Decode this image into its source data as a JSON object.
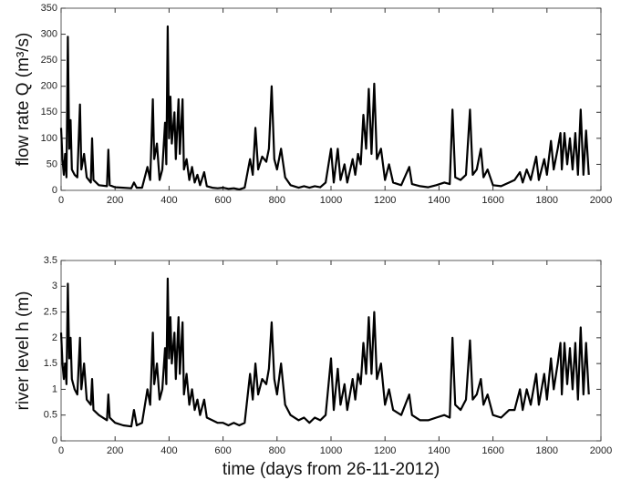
{
  "chart_data": [
    {
      "type": "line",
      "ylabel": "flow rate Q (m³/s)",
      "color": "#000000",
      "x": [
        0,
        5,
        10,
        15,
        20,
        25,
        30,
        35,
        40,
        50,
        60,
        70,
        75,
        85,
        95,
        110,
        115,
        120,
        140,
        170,
        175,
        180,
        200,
        230,
        260,
        270,
        280,
        300,
        320,
        330,
        340,
        345,
        355,
        365,
        375,
        385,
        390,
        395,
        400,
        405,
        410,
        420,
        425,
        435,
        440,
        450,
        455,
        465,
        475,
        485,
        495,
        505,
        515,
        530,
        540,
        560,
        580,
        600,
        620,
        640,
        660,
        680,
        700,
        710,
        720,
        730,
        745,
        760,
        770,
        780,
        790,
        800,
        815,
        830,
        850,
        880,
        900,
        920,
        940,
        960,
        980,
        1000,
        1010,
        1025,
        1035,
        1050,
        1060,
        1080,
        1090,
        1100,
        1110,
        1120,
        1130,
        1140,
        1150,
        1160,
        1170,
        1185,
        1200,
        1215,
        1230,
        1260,
        1290,
        1300,
        1330,
        1360,
        1390,
        1420,
        1440,
        1450,
        1460,
        1480,
        1500,
        1515,
        1525,
        1540,
        1555,
        1565,
        1580,
        1600,
        1630,
        1660,
        1680,
        1700,
        1710,
        1725,
        1740,
        1760,
        1770,
        1790,
        1800,
        1815,
        1825,
        1840,
        1850,
        1855,
        1865,
        1875,
        1885,
        1895,
        1905,
        1915,
        1925,
        1935,
        1945,
        1955
      ],
      "values": [
        120,
        60,
        30,
        70,
        25,
        295,
        80,
        135,
        40,
        30,
        25,
        165,
        40,
        70,
        25,
        15,
        100,
        20,
        10,
        8,
        78,
        10,
        6,
        5,
        4,
        15,
        5,
        5,
        45,
        20,
        175,
        60,
        90,
        20,
        40,
        130,
        50,
        315,
        100,
        180,
        90,
        150,
        60,
        175,
        70,
        175,
        40,
        60,
        20,
        45,
        15,
        30,
        10,
        35,
        8,
        5,
        4,
        5,
        3,
        4,
        2,
        5,
        60,
        30,
        120,
        40,
        65,
        55,
        80,
        200,
        60,
        40,
        80,
        25,
        10,
        5,
        8,
        5,
        8,
        6,
        15,
        80,
        15,
        80,
        20,
        50,
        15,
        60,
        30,
        70,
        50,
        145,
        80,
        195,
        70,
        205,
        60,
        80,
        20,
        50,
        15,
        10,
        45,
        12,
        8,
        6,
        10,
        15,
        12,
        155,
        25,
        20,
        30,
        155,
        30,
        40,
        80,
        25,
        40,
        10,
        8,
        15,
        20,
        35,
        15,
        40,
        20,
        65,
        20,
        60,
        30,
        95,
        40,
        80,
        110,
        40,
        110,
        50,
        100,
        40,
        110,
        30,
        155,
        30,
        115,
        30
      ],
      "xlim": [
        0,
        2000
      ],
      "xticks": [
        0,
        200,
        400,
        600,
        800,
        1000,
        1200,
        1400,
        1600,
        1800,
        2000
      ],
      "ylim": [
        0,
        350
      ],
      "yticks": [
        0,
        50,
        100,
        150,
        200,
        250,
        300,
        350
      ]
    },
    {
      "type": "line",
      "ylabel": "river level h (m)",
      "xlabel": "time (days from 26-11-2012)",
      "color": "#000000",
      "x": [
        0,
        5,
        10,
        15,
        20,
        25,
        30,
        35,
        40,
        50,
        60,
        70,
        75,
        85,
        95,
        110,
        115,
        120,
        140,
        170,
        175,
        180,
        200,
        230,
        260,
        270,
        280,
        300,
        320,
        330,
        340,
        345,
        355,
        365,
        375,
        385,
        390,
        395,
        400,
        405,
        410,
        420,
        425,
        435,
        440,
        450,
        455,
        465,
        475,
        485,
        495,
        505,
        515,
        530,
        540,
        560,
        580,
        600,
        620,
        640,
        660,
        680,
        700,
        710,
        720,
        730,
        745,
        760,
        770,
        780,
        790,
        800,
        815,
        830,
        850,
        880,
        900,
        920,
        940,
        960,
        980,
        1000,
        1010,
        1025,
        1035,
        1050,
        1060,
        1080,
        1090,
        1100,
        1110,
        1120,
        1130,
        1140,
        1150,
        1160,
        1170,
        1185,
        1200,
        1215,
        1230,
        1260,
        1290,
        1300,
        1330,
        1360,
        1390,
        1420,
        1440,
        1450,
        1460,
        1480,
        1500,
        1515,
        1525,
        1540,
        1555,
        1565,
        1580,
        1600,
        1630,
        1660,
        1680,
        1700,
        1710,
        1725,
        1740,
        1760,
        1770,
        1790,
        1800,
        1815,
        1825,
        1840,
        1850,
        1855,
        1865,
        1875,
        1885,
        1895,
        1905,
        1915,
        1925,
        1935,
        1945,
        1955
      ],
      "values": [
        2.1,
        1.5,
        1.2,
        1.5,
        1.1,
        3.05,
        1.6,
        2.0,
        1.2,
        1.0,
        0.9,
        2.0,
        1.0,
        1.5,
        0.8,
        0.7,
        1.2,
        0.6,
        0.5,
        0.4,
        0.9,
        0.45,
        0.35,
        0.3,
        0.28,
        0.6,
        0.3,
        0.35,
        1.0,
        0.7,
        2.1,
        1.1,
        1.5,
        0.8,
        1.0,
        1.8,
        1.1,
        3.15,
        1.6,
        2.4,
        1.5,
        2.1,
        1.2,
        2.4,
        1.3,
        2.3,
        0.9,
        1.3,
        0.7,
        1.0,
        0.6,
        0.8,
        0.5,
        0.8,
        0.45,
        0.4,
        0.35,
        0.35,
        0.3,
        0.35,
        0.3,
        0.35,
        1.3,
        0.8,
        1.5,
        0.9,
        1.2,
        1.1,
        1.4,
        2.3,
        1.2,
        0.9,
        1.5,
        0.7,
        0.5,
        0.4,
        0.45,
        0.35,
        0.45,
        0.4,
        0.5,
        1.6,
        0.6,
        1.4,
        0.7,
        1.1,
        0.6,
        1.2,
        0.8,
        1.3,
        1.1,
        1.9,
        1.3,
        2.4,
        1.3,
        2.5,
        1.2,
        1.5,
        0.7,
        1.0,
        0.6,
        0.5,
        0.9,
        0.5,
        0.4,
        0.4,
        0.45,
        0.5,
        0.45,
        2.0,
        0.7,
        0.6,
        0.8,
        1.95,
        0.8,
        0.9,
        1.2,
        0.7,
        0.9,
        0.5,
        0.45,
        0.6,
        0.6,
        1.0,
        0.6,
        1.0,
        0.7,
        1.3,
        0.7,
        1.3,
        0.8,
        1.6,
        1.0,
        1.5,
        1.9,
        0.9,
        1.9,
        1.1,
        1.8,
        1.0,
        1.9,
        0.8,
        2.2,
        0.9,
        1.9,
        0.9
      ],
      "xlim": [
        0,
        2000
      ],
      "xticks": [
        0,
        200,
        400,
        600,
        800,
        1000,
        1200,
        1400,
        1600,
        1800,
        2000
      ],
      "ylim": [
        0,
        3.5
      ],
      "yticks": [
        0,
        0.5,
        1,
        1.5,
        2,
        2.5,
        3,
        3.5
      ]
    }
  ]
}
